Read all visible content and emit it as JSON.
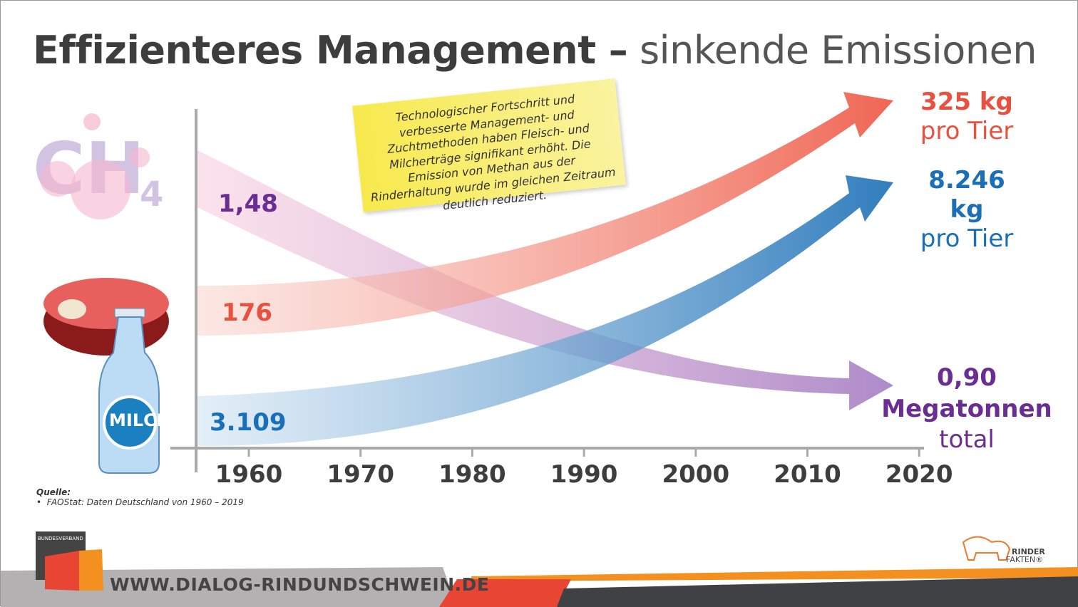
{
  "title": {
    "bold": "Effizienteres Management –",
    "light": "sinkende Emissionen"
  },
  "note": "Technologischer Fortschritt und verbesserte Management- und Zuchtmethoden haben Fleisch- und Milcherträge signifikant erhöht. Die Emission von Methan aus der Rinderhaltung wurde im gleichen Zeitraum deutlich reduziert.",
  "icons": {
    "methane": "CH4",
    "milk_label": "MILCH"
  },
  "chart_data": {
    "type": "line",
    "x_ticks": [
      "1960",
      "1970",
      "1980",
      "1990",
      "2000",
      "2010",
      "2020"
    ],
    "xlim": [
      1955,
      2020
    ],
    "series": [
      {
        "start_label": "1,48",
        "end_value": "0,90",
        "end_unit": "Megatonnen",
        "end_suffix": "total",
        "x": [
          1960,
          2019
        ],
        "values": [
          1.48,
          0.9
        ],
        "color": "#7b3fa0"
      },
      {
        "start_label": "176",
        "end_value": "325 kg",
        "end_unit": "pro Tier",
        "x": [
          1960,
          2019
        ],
        "values": [
          176,
          325
        ],
        "color": "#e8513f"
      },
      {
        "start_label": "3.109",
        "end_value": "8.246 kg",
        "end_unit": "pro Tier",
        "x": [
          1960,
          2019
        ],
        "values": [
          3109,
          8246
        ],
        "color": "#1a73b8"
      }
    ]
  },
  "source": {
    "heading": "Quelle:",
    "items": [
      "FAOStat: Daten Deutschland von 1960 – 2019"
    ]
  },
  "footer": {
    "url": "WWW.DIALOG-RINDUNDSCHWEIN.DE",
    "logo_left": "BUNDESVERBAND RIND UND SCHWEIN E.V.",
    "logo_right": "RINDER FAKTEN"
  }
}
